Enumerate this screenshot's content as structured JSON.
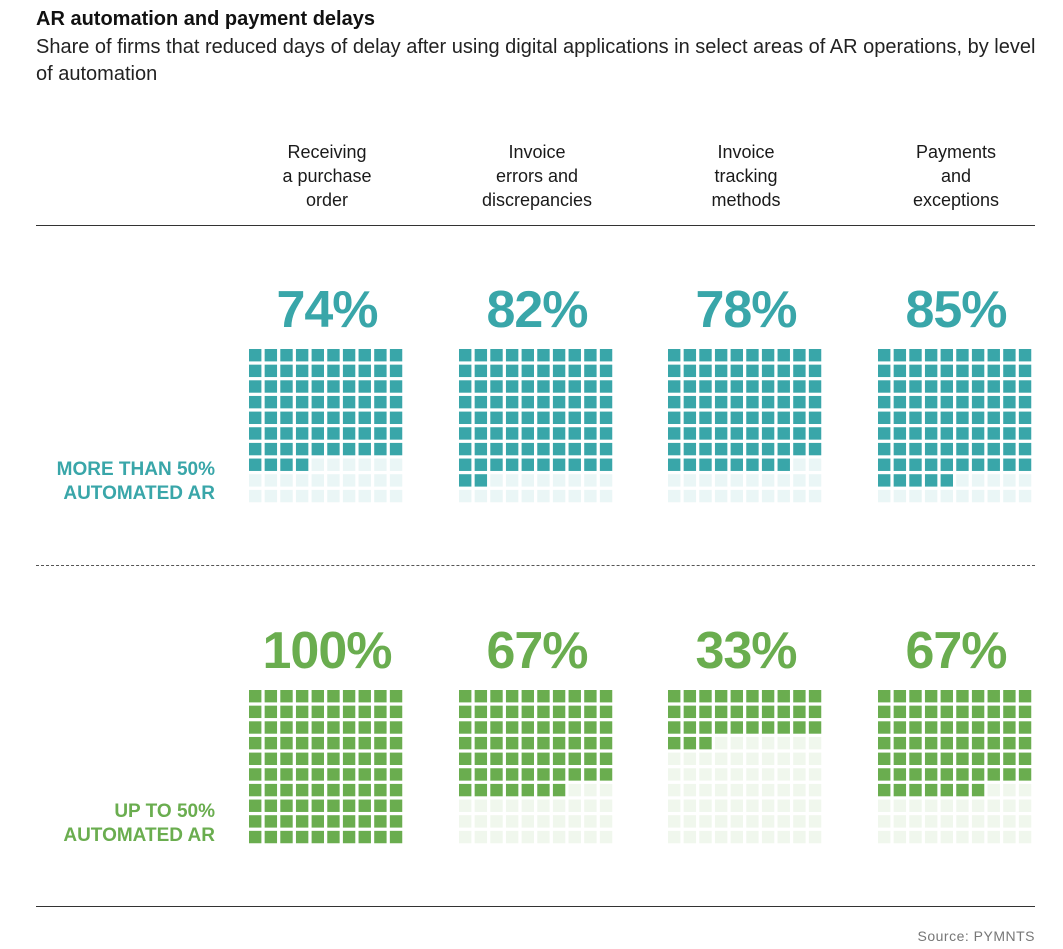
{
  "header": {
    "title": "AR automation and payment delays",
    "subtitle": "Share of firms that reduced days of delay after using digital applications in select areas of AR operations, by level of automation"
  },
  "footer": {
    "source": "Source: PYMNTS"
  },
  "colors": {
    "teal": "#39a6a9",
    "teal_light": "#eaf6f6",
    "green": "#6aad4f",
    "green_light": "#f0f7ed"
  },
  "chart_data": {
    "type": "waffle",
    "title": "AR automation and payment delays",
    "subtitle": "Share of firms that reduced days of delay after using digital applications in select areas of AR operations, by level of automation",
    "grid": "10x10",
    "unit": "%",
    "categories": [
      "Receiving a purchase order",
      "Invoice errors and discrepancies",
      "Invoice tracking methods",
      "Payments and exceptions"
    ],
    "category_lines": [
      [
        "Receiving",
        "a purchase",
        "order"
      ],
      [
        "Invoice",
        "errors and",
        "discrepancies"
      ],
      [
        "Invoice",
        "tracking",
        "methods"
      ],
      [
        "Payments",
        "and",
        "exceptions"
      ]
    ],
    "series": [
      {
        "name": "More than 50% automated AR",
        "label_lines": [
          "MORE THAN 50%",
          "AUTOMATED AR"
        ],
        "color": "#39a6a9",
        "values": [
          74,
          82,
          78,
          85
        ],
        "labels": [
          "74%",
          "82%",
          "78%",
          "85%"
        ]
      },
      {
        "name": "Up to 50% automated AR",
        "label_lines": [
          "UP TO 50%",
          "AUTOMATED AR"
        ],
        "color": "#6aad4f",
        "values": [
          100,
          67,
          33,
          67
        ],
        "labels": [
          "100%",
          "67%",
          "33%",
          "67%"
        ]
      }
    ],
    "source": "Source: PYMNTS"
  }
}
